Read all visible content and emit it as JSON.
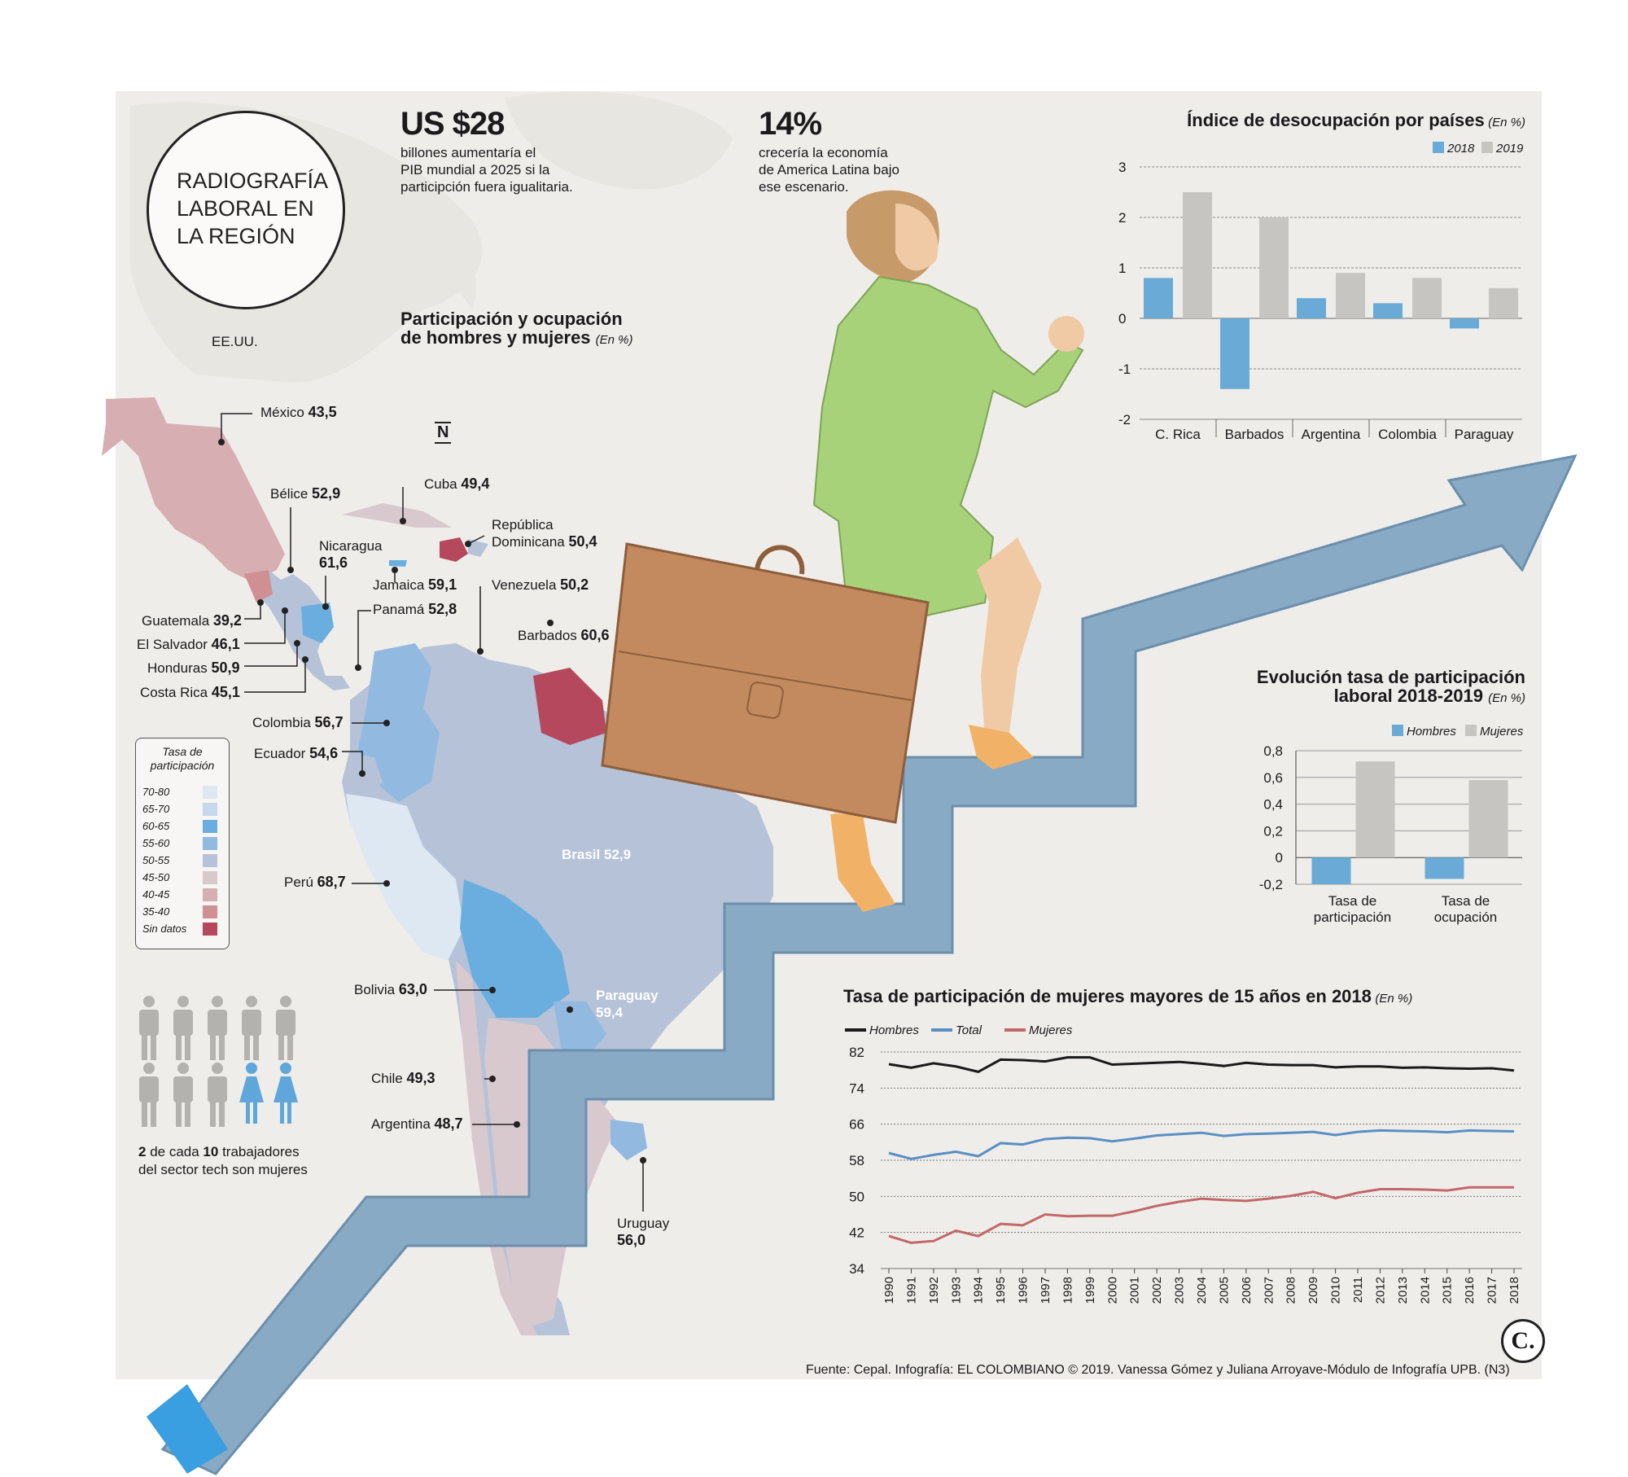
{
  "header": {
    "title": "RADIOGRAFÍA LABORAL EN LA REGIÓN",
    "title_lines": [
      "RADIOGRAFÍA",
      "LABORAL EN",
      "LA REGIÓN"
    ]
  },
  "stat1": {
    "value": "US $28",
    "text_lines": [
      "billones aumentaría el",
      "PIB mundial a 2025 si la",
      "participción fuera igualitaria."
    ]
  },
  "stat2": {
    "value": "14%",
    "text_lines": [
      "crecería la economía",
      "de America Latina bajo",
      "ese escenario."
    ]
  },
  "map": {
    "title_lines": [
      "Participación y ocupación",
      "de hombres y mujeres"
    ],
    "unit": "(En %)",
    "usa_label": "EE.UU.",
    "north": "N",
    "countries": [
      {
        "name": "México",
        "value": "43,5"
      },
      {
        "name": "Bélice",
        "value": "52,9"
      },
      {
        "name": "Cuba",
        "value": "49,4"
      },
      {
        "name": "República",
        "name2": "Dominicana",
        "value": "50,4"
      },
      {
        "name": "Nicaragua",
        "value": "61,6"
      },
      {
        "name": "Jamaica",
        "value": "59,1"
      },
      {
        "name": "Venezuela",
        "value": "50,2"
      },
      {
        "name": "Panamá",
        "value": "52,8"
      },
      {
        "name": "Barbados",
        "value": "60,6"
      },
      {
        "name": "Guatemala",
        "value": "39,2"
      },
      {
        "name": "El Salvador",
        "value": "46,1"
      },
      {
        "name": "Honduras",
        "value": "50,9"
      },
      {
        "name": "Costa Rica",
        "value": "45,1"
      },
      {
        "name": "Colombia",
        "value": "56,7"
      },
      {
        "name": "Ecuador",
        "value": "54,6"
      },
      {
        "name": "Brasil",
        "value": "52,9"
      },
      {
        "name": "Perú",
        "value": "68,7"
      },
      {
        "name": "Bolivia",
        "value": "63,0"
      },
      {
        "name": "Paraguay",
        "value": "59,4"
      },
      {
        "name": "Chile",
        "value": "49,3"
      },
      {
        "name": "Argentina",
        "value": "48,7"
      },
      {
        "name": "Uruguay",
        "value": "56,0"
      }
    ],
    "legend": {
      "title_lines": [
        "Tasa de",
        "participación"
      ],
      "items": [
        {
          "label": "70-80",
          "color": "#dde8f3"
        },
        {
          "label": "65-70",
          "color": "#c5d8ec"
        },
        {
          "label": "60-65",
          "color": "#6aaedf"
        },
        {
          "label": "55-60",
          "color": "#92b9df"
        },
        {
          "label": "50-55",
          "color": "#b5c2d8"
        },
        {
          "label": "45-50",
          "color": "#d8c9cf"
        },
        {
          "label": "40-45",
          "color": "#d7aeb1"
        },
        {
          "label": "35-40",
          "color": "#cf8f93"
        },
        {
          "label": "Sin datos",
          "color": "#b6485e"
        }
      ]
    }
  },
  "tech": {
    "num1": "2",
    "mid": " de cada ",
    "num2": "10",
    "rest": " trabajadores",
    "line2": "del sector tech son mujeres"
  },
  "footer": {
    "source": "Fuente: Cepal. Infografía: EL COLOMBIANO © 2019. Vanessa Gómez y Juliana Arroyave-Módulo de Infografía UPB. (N3)",
    "logo": "C."
  },
  "colors": {
    "blue": "#6aaad6",
    "gray": "#c7c5c2",
    "black": "#1a1a1a",
    "total": "#5a8fc4",
    "women": "#c26868"
  },
  "chart_data": [
    {
      "type": "bar",
      "title": "Índice de desocupación por países",
      "unit": "(En %)",
      "categories": [
        "C. Rica",
        "Barbados",
        "Argentina",
        "Colombia",
        "Paraguay"
      ],
      "series": [
        {
          "name": "2018",
          "values": [
            0.8,
            -1.4,
            0.4,
            0.3,
            -0.2
          ]
        },
        {
          "name": "2019",
          "values": [
            2.5,
            2.0,
            0.9,
            0.8,
            0.6
          ]
        }
      ],
      "ylim": [
        -2,
        3
      ],
      "yticks": [
        "3",
        "2",
        "1",
        "0",
        "-1",
        "-2"
      ],
      "legend": "top-right"
    },
    {
      "type": "bar",
      "title_lines": [
        "Evolución tasa de participación",
        "laboral 2018-2019"
      ],
      "unit": "(En %)",
      "categories": [
        [
          "Tasa de",
          "participación"
        ],
        [
          "Tasa de",
          "ocupación"
        ]
      ],
      "series": [
        {
          "name": "Hombres",
          "values": [
            -0.2,
            -0.16
          ]
        },
        {
          "name": "Mujeres",
          "values": [
            0.72,
            0.58
          ]
        }
      ],
      "ylim": [
        -0.2,
        0.8
      ],
      "yticks": [
        "0,8",
        "0,6",
        "0,4",
        "0,2",
        "0",
        "-0,2"
      ],
      "legend": "top-right"
    },
    {
      "type": "line",
      "title": "Tasa de participación de mujeres mayores de 15 años en 2018",
      "unit": "(En %)",
      "x": [
        "1990",
        "1991",
        "1992",
        "1993",
        "1994",
        "1995",
        "1996",
        "1997",
        "1998",
        "1999",
        "2000",
        "2001",
        "2002",
        "2003",
        "2004",
        "2005",
        "2006",
        "2007",
        "2008",
        "2009",
        "2010",
        "2011",
        "2012",
        "2013",
        "2014",
        "2015",
        "2016",
        "2017",
        "2018"
      ],
      "series": [
        {
          "name": "Hombres",
          "values": [
            79.3,
            78.5,
            79.5,
            78.8,
            77.6,
            80.3,
            80.2,
            79.9,
            80.8,
            80.8,
            79.2,
            79.4,
            79.6,
            79.8,
            79.4,
            78.9,
            79.6,
            79.2,
            79.1,
            79.1,
            78.6,
            78.8,
            78.8,
            78.5,
            78.6,
            78.4,
            78.3,
            78.4,
            77.9
          ]
        },
        {
          "name": "Total",
          "values": [
            59.6,
            58.3,
            59.2,
            59.9,
            58.9,
            61.8,
            61.5,
            62.7,
            63.0,
            62.9,
            62.2,
            62.8,
            63.5,
            63.8,
            64.1,
            63.4,
            63.8,
            63.9,
            64.1,
            64.3,
            63.6,
            64.3,
            64.6,
            64.5,
            64.4,
            64.2,
            64.6,
            64.5,
            64.4
          ]
        },
        {
          "name": "Mujeres",
          "values": [
            41.2,
            39.7,
            40.1,
            42.4,
            41.2,
            43.9,
            43.6,
            46.0,
            45.6,
            45.7,
            45.7,
            46.7,
            47.9,
            48.8,
            49.5,
            49.2,
            49.0,
            49.5,
            50.1,
            51.0,
            49.6,
            50.8,
            51.6,
            51.6,
            51.5,
            51.3,
            52.0,
            52.0,
            52.0
          ]
        }
      ],
      "ylim": [
        34,
        82
      ],
      "yticks": [
        "82",
        "74",
        "66",
        "58",
        "50",
        "42",
        "34"
      ],
      "legend": "top-left"
    }
  ]
}
